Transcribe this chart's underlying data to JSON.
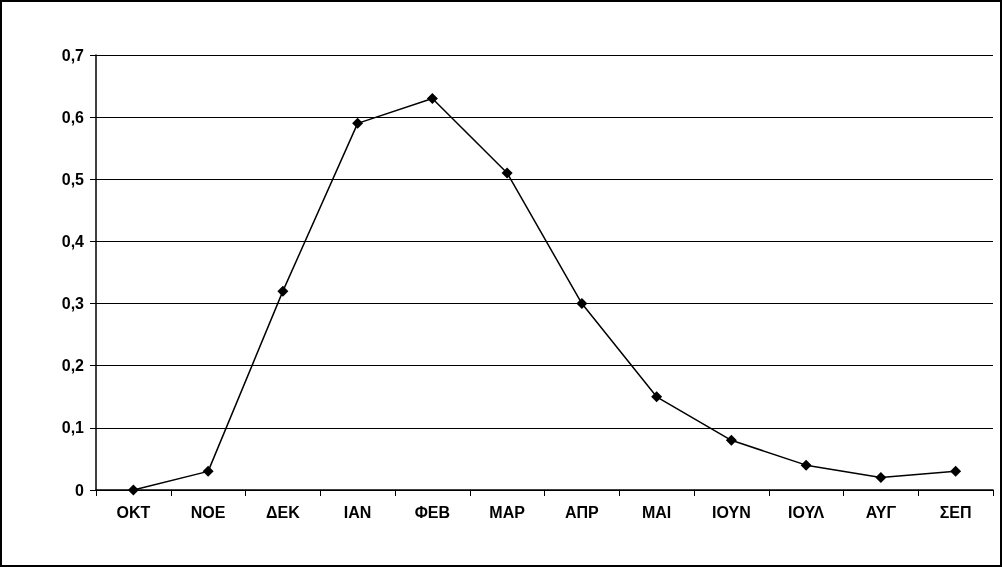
{
  "chart_data": {
    "type": "line",
    "categories": [
      "ΟΚΤ",
      "ΝΟΕ",
      "ΔΕΚ",
      "ΙΑΝ",
      "ΦΕΒ",
      "ΜΑΡ",
      "ΑΠΡ",
      "ΜΑΙ",
      "ΙΟΥΝ",
      "ΙΟΥΛ",
      "ΑΥΓ",
      "ΣΕΠ"
    ],
    "series": [
      {
        "color": "#000000",
        "values": [
          0,
          0.03,
          0.32,
          0.59,
          0.63,
          0.51,
          0.3,
          0.15,
          0.08,
          0.04,
          0.02,
          0.03
        ]
      }
    ],
    "ylim": [
      0,
      0.7
    ],
    "yticks": [
      0,
      {
        "value": 0.1,
        "label": "0,1"
      },
      {
        "value": 0.2,
        "label": "0,2"
      },
      {
        "value": 0.3,
        "label": "0,3"
      },
      {
        "value": 0.4,
        "label": "0,4"
      },
      {
        "value": 0.5,
        "label": "0,5"
      },
      {
        "value": 0.6,
        "label": "0,6"
      },
      {
        "value": 0.7,
        "label": "0,7"
      }
    ],
    "grid": "y",
    "marker": "diamond",
    "line_style": "solid"
  }
}
